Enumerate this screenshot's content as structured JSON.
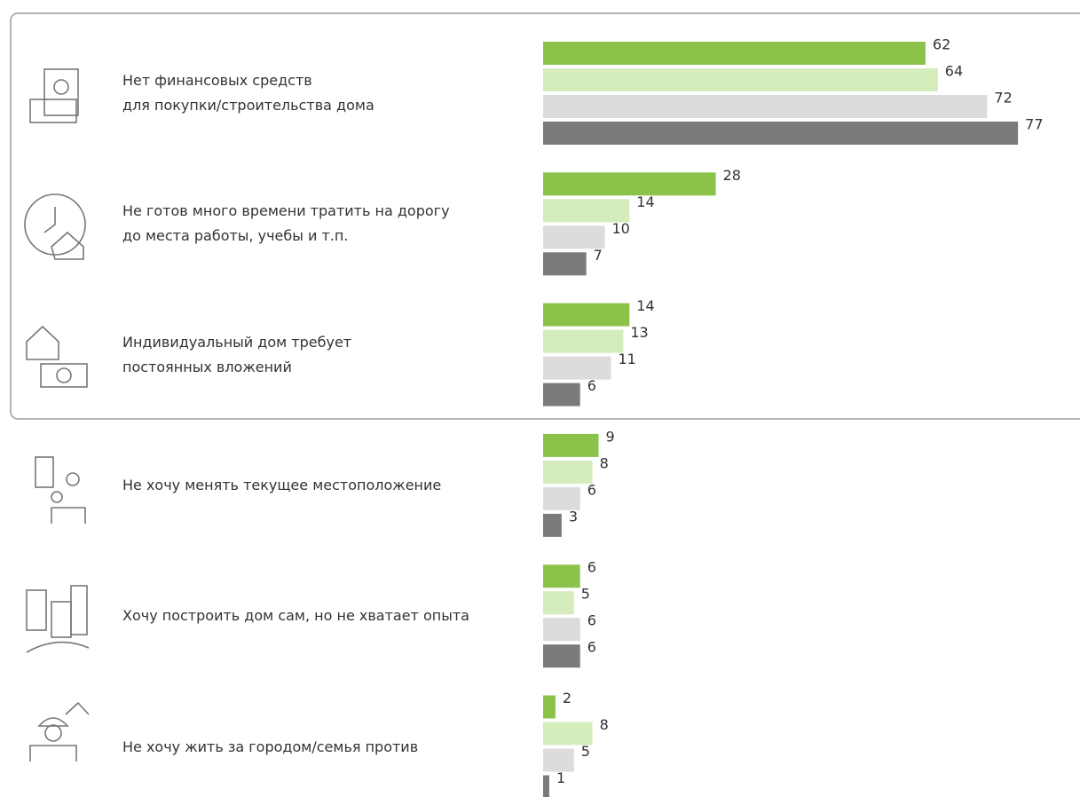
{
  "chart_data": {
    "type": "bar",
    "orientation": "horizontal",
    "categories": [
      "Нет финансовых средств\nдля покупки/строительства дома",
      "Не готов много времени тратить на дорогу\nдо места работы, учебы  и т.п.",
      "Индивидуальный дом требует\nпостоянных вложений",
      "Не хочу менять текущее местоположение",
      "Хочу построить дом сам, но не хватает опыта",
      "Не хочу жить за городом/семья против"
    ],
    "series": [
      {
        "color": "#8bc34a",
        "values": [
          62,
          28,
          14,
          9,
          6,
          2
        ]
      },
      {
        "color": "#d5ecbc",
        "values": [
          64,
          14,
          13,
          8,
          5,
          8
        ]
      },
      {
        "color": "#dcdcdc",
        "values": [
          72,
          10,
          11,
          6,
          6,
          5
        ]
      },
      {
        "color": "#7a7a7a",
        "values": [
          77,
          7,
          6,
          3,
          6,
          1
        ]
      }
    ]
  }
}
